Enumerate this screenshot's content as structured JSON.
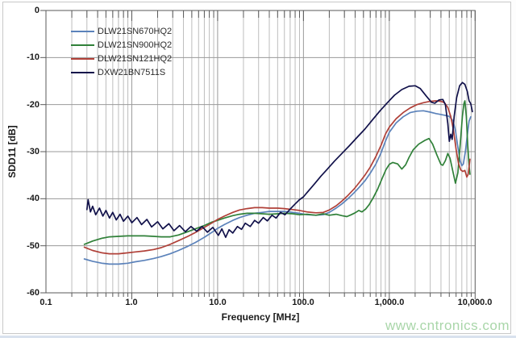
{
  "watermark": {
    "text": "www.cntronics.com",
    "color": "#a9d6a9"
  },
  "chart_data": {
    "type": "line",
    "title": "",
    "xlabel": "Frequency [MHz]",
    "ylabel": "SDD11 [dB]",
    "x_scale": "log",
    "xlim": [
      0.1,
      10000
    ],
    "ylim": [
      -60,
      0
    ],
    "x_tick_labels": [
      "0.1",
      "1.0",
      "10.0",
      "100.0",
      "1,000.0",
      "10,000.0"
    ],
    "y_tick_labels": [
      "0",
      "-10",
      "-20",
      "-30",
      "-40",
      "-50",
      "-60"
    ],
    "grid": true,
    "legend_position": "top-left",
    "frame_color": "#5a5a5a",
    "grid_major_color": "#9a9a9a",
    "grid_minor_color": "#bdbdbd",
    "series": [
      {
        "name": "DLW21SN670HQ2",
        "color": "#5b82ba",
        "points": [
          [
            0.28,
            -52.8
          ],
          [
            0.35,
            -53.3
          ],
          [
            0.45,
            -53.7
          ],
          [
            0.55,
            -53.9
          ],
          [
            0.7,
            -53.9
          ],
          [
            0.9,
            -53.7
          ],
          [
            1.1,
            -53.4
          ],
          [
            1.4,
            -53.1
          ],
          [
            1.8,
            -52.7
          ],
          [
            2.2,
            -52.3
          ],
          [
            2.8,
            -51.7
          ],
          [
            3.5,
            -51.0
          ],
          [
            4.5,
            -50.1
          ],
          [
            5.5,
            -49.3
          ],
          [
            7,
            -48.2
          ],
          [
            8.5,
            -47.2
          ],
          [
            10,
            -46.3
          ],
          [
            12,
            -45.5
          ],
          [
            15,
            -44.6
          ],
          [
            18,
            -44.0
          ],
          [
            22,
            -43.5
          ],
          [
            27,
            -43.1
          ],
          [
            33,
            -42.9
          ],
          [
            40,
            -42.7
          ],
          [
            50,
            -42.7
          ],
          [
            60,
            -42.7
          ],
          [
            75,
            -42.9
          ],
          [
            90,
            -43.1
          ],
          [
            110,
            -43.4
          ],
          [
            140,
            -43.5
          ],
          [
            170,
            -43.4
          ],
          [
            200,
            -42.9
          ],
          [
            240,
            -42.0
          ],
          [
            280,
            -41.1
          ],
          [
            330,
            -40.0
          ],
          [
            390,
            -38.7
          ],
          [
            450,
            -37.5
          ],
          [
            520,
            -36.2
          ],
          [
            600,
            -34.6
          ],
          [
            700,
            -32.6
          ],
          [
            800,
            -30.3
          ],
          [
            900,
            -27.8
          ],
          [
            1000,
            -25.9
          ],
          [
            1200,
            -23.9
          ],
          [
            1450,
            -22.6
          ],
          [
            1750,
            -21.7
          ],
          [
            2100,
            -21.4
          ],
          [
            2500,
            -21.3
          ],
          [
            3000,
            -21.6
          ],
          [
            3500,
            -21.9
          ],
          [
            4000,
            -22.1
          ],
          [
            4500,
            -22.3
          ],
          [
            5000,
            -22.5
          ],
          [
            5500,
            -23.4
          ],
          [
            5900,
            -25.5
          ],
          [
            6300,
            -29.0
          ],
          [
            6700,
            -32.0
          ],
          [
            7000,
            -33.0
          ],
          [
            7300,
            -32.6
          ],
          [
            7700,
            -30.0
          ],
          [
            8100,
            -26.5
          ],
          [
            8500,
            -23.5
          ],
          [
            8900,
            -22.6
          ]
        ]
      },
      {
        "name": "DLW21SN900HQ2",
        "color": "#2f8038",
        "points": [
          [
            0.28,
            -49.7
          ],
          [
            0.35,
            -49.0
          ],
          [
            0.45,
            -48.4
          ],
          [
            0.55,
            -48.1
          ],
          [
            0.7,
            -48.0
          ],
          [
            0.9,
            -47.9
          ],
          [
            1.1,
            -47.9
          ],
          [
            1.4,
            -47.9
          ],
          [
            1.8,
            -48.0
          ],
          [
            2.2,
            -48.1
          ],
          [
            2.8,
            -48.1
          ],
          [
            3.5,
            -47.7
          ],
          [
            4.5,
            -47.0
          ],
          [
            5.5,
            -46.4
          ],
          [
            7,
            -45.7
          ],
          [
            8.5,
            -45.0
          ],
          [
            10,
            -44.6
          ],
          [
            12,
            -44.1
          ],
          [
            15,
            -43.6
          ],
          [
            18,
            -43.3
          ],
          [
            22,
            -43.1
          ],
          [
            27,
            -43.1
          ],
          [
            33,
            -43.2
          ],
          [
            40,
            -43.3
          ],
          [
            50,
            -43.2
          ],
          [
            60,
            -43.1
          ],
          [
            75,
            -43.2
          ],
          [
            90,
            -43.4
          ],
          [
            110,
            -43.3
          ],
          [
            140,
            -43.5
          ],
          [
            170,
            -43.2
          ],
          [
            200,
            -43.5
          ],
          [
            240,
            -43.3
          ],
          [
            280,
            -43.6
          ],
          [
            320,
            -43.8
          ],
          [
            360,
            -43.4
          ],
          [
            400,
            -43.0
          ],
          [
            440,
            -42.5
          ],
          [
            480,
            -42.8
          ],
          [
            530,
            -42.2
          ],
          [
            580,
            -41.3
          ],
          [
            650,
            -39.8
          ],
          [
            730,
            -38.0
          ],
          [
            820,
            -35.8
          ],
          [
            910,
            -33.9
          ],
          [
            1000,
            -32.7
          ],
          [
            1100,
            -32.3
          ],
          [
            1250,
            -32.6
          ],
          [
            1400,
            -33.7
          ],
          [
            1550,
            -32.8
          ],
          [
            1700,
            -31.2
          ],
          [
            1900,
            -29.6
          ],
          [
            2200,
            -28.4
          ],
          [
            2600,
            -27.6
          ],
          [
            2900,
            -27.2
          ],
          [
            3200,
            -28.4
          ],
          [
            3600,
            -30.8
          ],
          [
            4000,
            -32.7
          ],
          [
            4200,
            -32.9
          ],
          [
            4500,
            -31.9
          ],
          [
            4800,
            -30.4
          ],
          [
            5100,
            -31.4
          ],
          [
            5500,
            -34.2
          ],
          [
            5900,
            -36.7
          ],
          [
            6300,
            -34.5
          ],
          [
            6700,
            -28.5
          ],
          [
            7100,
            -22.5
          ],
          [
            7400,
            -19.8
          ],
          [
            7600,
            -19.2
          ],
          [
            7900,
            -22.5
          ],
          [
            8200,
            -28.5
          ],
          [
            8500,
            -33.0
          ],
          [
            8700,
            -34.8
          ]
        ]
      },
      {
        "name": "DLW21SN121HQ2",
        "color": "#b04038",
        "points": [
          [
            0.28,
            -50.3
          ],
          [
            0.35,
            -51.0
          ],
          [
            0.45,
            -51.5
          ],
          [
            0.55,
            -51.7
          ],
          [
            0.7,
            -51.7
          ],
          [
            0.9,
            -51.5
          ],
          [
            1.1,
            -51.3
          ],
          [
            1.4,
            -51.1
          ],
          [
            1.8,
            -50.8
          ],
          [
            2.2,
            -50.4
          ],
          [
            2.8,
            -49.7
          ],
          [
            3.5,
            -48.9
          ],
          [
            4.5,
            -48.0
          ],
          [
            5.5,
            -47.2
          ],
          [
            7,
            -46.1
          ],
          [
            8.5,
            -45.2
          ],
          [
            10,
            -44.4
          ],
          [
            12,
            -43.7
          ],
          [
            15,
            -42.9
          ],
          [
            18,
            -42.4
          ],
          [
            22,
            -42.1
          ],
          [
            27,
            -41.9
          ],
          [
            33,
            -41.9
          ],
          [
            40,
            -42.0
          ],
          [
            50,
            -42.0
          ],
          [
            60,
            -42.1
          ],
          [
            75,
            -42.3
          ],
          [
            90,
            -42.5
          ],
          [
            110,
            -42.8
          ],
          [
            140,
            -43.0
          ],
          [
            170,
            -42.9
          ],
          [
            200,
            -42.4
          ],
          [
            240,
            -41.5
          ],
          [
            280,
            -40.5
          ],
          [
            330,
            -39.3
          ],
          [
            390,
            -37.9
          ],
          [
            450,
            -36.5
          ],
          [
            520,
            -35.0
          ],
          [
            600,
            -33.3
          ],
          [
            700,
            -31.0
          ],
          [
            800,
            -28.7
          ],
          [
            900,
            -26.3
          ],
          [
            1000,
            -24.8
          ],
          [
            1200,
            -23.0
          ],
          [
            1450,
            -21.7
          ],
          [
            1750,
            -20.7
          ],
          [
            2100,
            -20.0
          ],
          [
            2500,
            -19.6
          ],
          [
            3000,
            -19.3
          ],
          [
            3500,
            -19.2
          ],
          [
            4000,
            -19.3
          ],
          [
            4400,
            -19.6
          ],
          [
            4800,
            -20.6
          ],
          [
            5200,
            -22.5
          ],
          [
            5600,
            -25.5
          ],
          [
            6000,
            -29.5
          ],
          [
            6400,
            -32.5
          ],
          [
            6800,
            -33.9
          ],
          [
            7200,
            -34.2
          ],
          [
            7600,
            -34.0
          ],
          [
            8000,
            -35.4
          ],
          [
            8300,
            -34.8
          ],
          [
            8700,
            -31.6
          ]
        ]
      },
      {
        "name": "DXW21BN7511S",
        "color": "#11114a",
        "points": [
          [
            0.3,
            -42.3
          ],
          [
            0.31,
            -40.2
          ],
          [
            0.33,
            -42.8
          ],
          [
            0.35,
            -41.6
          ],
          [
            0.38,
            -43.4
          ],
          [
            0.42,
            -42.0
          ],
          [
            0.46,
            -43.7
          ],
          [
            0.5,
            -42.5
          ],
          [
            0.55,
            -44.1
          ],
          [
            0.6,
            -42.9
          ],
          [
            0.66,
            -44.5
          ],
          [
            0.73,
            -43.3
          ],
          [
            0.8,
            -44.8
          ],
          [
            0.9,
            -43.7
          ],
          [
            1.0,
            -45.1
          ],
          [
            1.15,
            -44.0
          ],
          [
            1.3,
            -45.5
          ],
          [
            1.5,
            -44.4
          ],
          [
            1.7,
            -46.0
          ],
          [
            2.0,
            -44.9
          ],
          [
            2.3,
            -46.4
          ],
          [
            2.7,
            -45.3
          ],
          [
            3.1,
            -46.8
          ],
          [
            3.6,
            -45.7
          ],
          [
            4.2,
            -47.0
          ],
          [
            4.9,
            -45.9
          ],
          [
            5.7,
            -46.9
          ],
          [
            6.6,
            -45.9
          ],
          [
            7.6,
            -47.1
          ],
          [
            8.8,
            -46.1
          ],
          [
            10.2,
            -47.8
          ],
          [
            11.2,
            -46.4
          ],
          [
            12.4,
            -48.2
          ],
          [
            13.6,
            -46.6
          ],
          [
            15,
            -47.3
          ],
          [
            17,
            -45.9
          ],
          [
            19,
            -46.5
          ],
          [
            21,
            -45.2
          ],
          [
            24,
            -45.9
          ],
          [
            27,
            -44.6
          ],
          [
            30,
            -45.2
          ],
          [
            34,
            -44.0
          ],
          [
            38,
            -44.7
          ],
          [
            43,
            -43.5
          ],
          [
            48,
            -44.1
          ],
          [
            54,
            -42.9
          ],
          [
            61,
            -43.4
          ],
          [
            70,
            -42.2
          ],
          [
            80,
            -41.1
          ],
          [
            90,
            -40.2
          ],
          [
            100,
            -39.6
          ],
          [
            115,
            -38.3
          ],
          [
            135,
            -36.8
          ],
          [
            160,
            -35.2
          ],
          [
            190,
            -33.7
          ],
          [
            230,
            -32.0
          ],
          [
            280,
            -30.4
          ],
          [
            340,
            -28.8
          ],
          [
            420,
            -27.0
          ],
          [
            520,
            -25.2
          ],
          [
            640,
            -23.2
          ],
          [
            780,
            -21.3
          ],
          [
            950,
            -19.6
          ],
          [
            1150,
            -18.0
          ],
          [
            1400,
            -16.8
          ],
          [
            1700,
            -16.1
          ],
          [
            2000,
            -16.0
          ],
          [
            2300,
            -16.6
          ],
          [
            2700,
            -18.2
          ],
          [
            3100,
            -19.5
          ],
          [
            3400,
            -19.7
          ],
          [
            3800,
            -19.0
          ],
          [
            4200,
            -18.9
          ],
          [
            4500,
            -20.0
          ],
          [
            4800,
            -24.0
          ],
          [
            5000,
            -27.8
          ],
          [
            5200,
            -26.3
          ],
          [
            5400,
            -27.4
          ],
          [
            5700,
            -22.5
          ],
          [
            6100,
            -18.5
          ],
          [
            6600,
            -16.0
          ],
          [
            7100,
            -15.3
          ],
          [
            7600,
            -15.7
          ],
          [
            8100,
            -17.2
          ],
          [
            8500,
            -19.2
          ],
          [
            8900,
            -19.8
          ],
          [
            9300,
            -21.5
          ]
        ]
      }
    ]
  }
}
